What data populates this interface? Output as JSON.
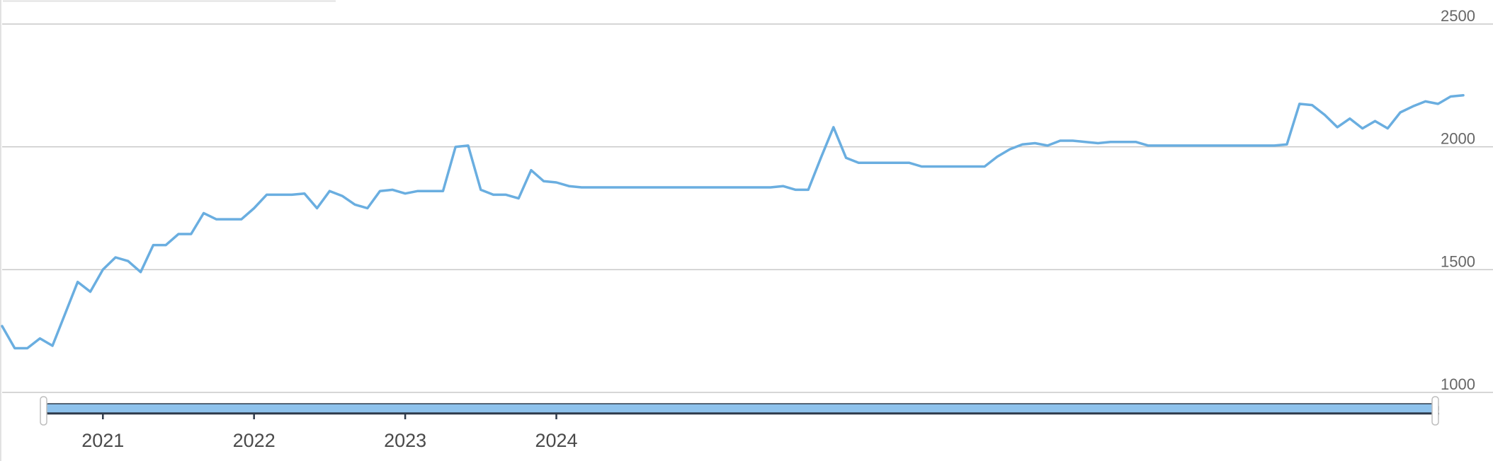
{
  "colors": {
    "series": "#6aaee0",
    "grid": "#c8c8c8",
    "scrollbar_fill": "#8ec2ec",
    "scrollbar_border": "#2f3a4a",
    "handle": "#ffffff",
    "handle_border": "#bdbdbd"
  },
  "chart_data": {
    "type": "line",
    "title": "",
    "xlabel": "",
    "ylabel": "",
    "ylim": [
      1000,
      2500
    ],
    "yticks": [
      "1000",
      "1500",
      "2000",
      "2500"
    ],
    "xticks": [
      "2021",
      "2022",
      "2023",
      "2024"
    ],
    "grid": true,
    "legend": "none",
    "navigator": "bottom",
    "x_start": "2020-05",
    "series": [
      {
        "values": [
          1270,
          1180,
          1180,
          1220,
          1190,
          1320,
          1450,
          1410,
          1500,
          1550,
          1535,
          1490,
          1600,
          1600,
          1645,
          1645,
          1730,
          1705,
          1705,
          1705,
          1750,
          1805,
          1805,
          1805,
          1810,
          1750,
          1820,
          1800,
          1765,
          1750,
          1820,
          1825,
          1810,
          1820,
          1820,
          1820,
          2000,
          2005,
          1825,
          1805,
          1805,
          1790,
          1905,
          1860,
          1855,
          1840,
          1835,
          1835,
          1835,
          1835,
          1835,
          1835,
          1835,
          1835,
          1835,
          1835,
          1835,
          1835,
          1835,
          1835,
          1835,
          1835,
          1840,
          1825,
          1825,
          1955,
          2080,
          1955,
          1935,
          1935,
          1935,
          1935,
          1935,
          1920,
          1920,
          1920,
          1920,
          1920,
          1920,
          1960,
          1990,
          2010,
          2015,
          2005,
          2025,
          2025,
          2020,
          2015,
          2020,
          2020,
          2020,
          2005,
          2005,
          2005,
          2005,
          2005,
          2005,
          2005,
          2005,
          2005,
          2005,
          2005,
          2010,
          2175,
          2170,
          2130,
          2080,
          2115,
          2075,
          2105,
          2075,
          2140,
          2165,
          2185,
          2175,
          2205,
          2210
        ]
      }
    ]
  }
}
